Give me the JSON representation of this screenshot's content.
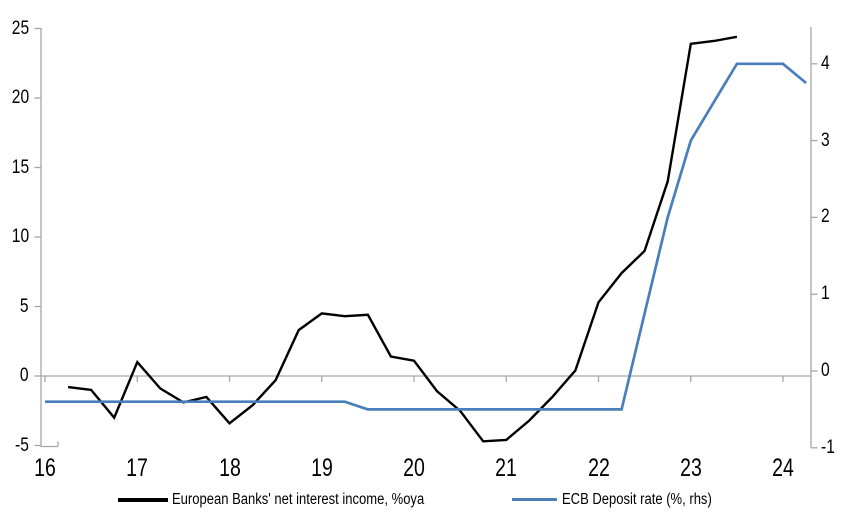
{
  "figure": {
    "background": "#ffffff",
    "axis_color": "#a6a6a6",
    "text_color": "#000000"
  },
  "chart_data": {
    "type": "line",
    "title": "",
    "xlabel": "",
    "ylabel_left": "",
    "ylabel_right": "",
    "grid": "zero-line-only",
    "x_axis": {
      "tick_values": [
        16,
        17,
        18,
        19,
        20,
        21,
        22,
        23,
        24
      ],
      "tick_labels": [
        "16",
        "17",
        "18",
        "19",
        "20",
        "21",
        "22",
        "23",
        "24"
      ],
      "range": [
        15.95,
        24.3
      ]
    },
    "left_axis": {
      "tick_values": [
        -5,
        0,
        5,
        10,
        15,
        20,
        25
      ],
      "tick_labels": [
        "-5",
        "0",
        "5",
        "10",
        "15",
        "20",
        "25"
      ],
      "range": [
        -5,
        25
      ]
    },
    "right_axis": {
      "tick_values": [
        -1,
        0,
        1,
        2,
        3,
        4
      ],
      "tick_labels": [
        "-1",
        "0",
        "1",
        "2",
        "3",
        "4"
      ],
      "range": [
        -1,
        4.5
      ]
    },
    "series": [
      {
        "name": "European Banks' net interest income, %oya",
        "axis": "left",
        "color": "#000000",
        "line_width": 2.4,
        "x": [
          16.25,
          16.5,
          16.75,
          17,
          17.25,
          17.5,
          17.75,
          18,
          18.25,
          18.5,
          18.75,
          19,
          19.25,
          19.5,
          19.75,
          20,
          20.25,
          20.5,
          20.75,
          21,
          21.25,
          21.5,
          21.75,
          22,
          22.25,
          22.5,
          22.75,
          23,
          23.25,
          23.5
        ],
        "y": [
          -0.8,
          -1.0,
          -3.0,
          1.0,
          -0.9,
          -1.9,
          -1.5,
          -3.4,
          -2.1,
          -0.3,
          3.3,
          4.5,
          4.3,
          4.4,
          1.4,
          1.1,
          -1.1,
          -2.5,
          -4.7,
          -4.6,
          -3.2,
          -1.5,
          0.4,
          5.3,
          7.4,
          9.0,
          14.0,
          23.9,
          24.1,
          24.4
        ]
      },
      {
        "name": "ECB Deposit rate (%, rhs)",
        "axis": "right",
        "color": "#4a7ebb",
        "line_width": 2.7,
        "x": [
          16,
          16.25,
          16.5,
          16.75,
          17,
          17.25,
          17.5,
          17.75,
          18,
          18.25,
          18.5,
          18.75,
          19,
          19.25,
          19.5,
          19.75,
          20,
          20.25,
          20.5,
          20.75,
          21,
          21.25,
          21.5,
          21.75,
          22,
          22.25,
          22.5,
          22.75,
          23,
          23.25,
          23.5,
          23.75,
          24,
          24.25
        ],
        "y": [
          -0.4,
          -0.4,
          -0.4,
          -0.4,
          -0.4,
          -0.4,
          -0.4,
          -0.4,
          -0.4,
          -0.4,
          -0.4,
          -0.4,
          -0.4,
          -0.4,
          -0.5,
          -0.5,
          -0.5,
          -0.5,
          -0.5,
          -0.5,
          -0.5,
          -0.5,
          -0.5,
          -0.5,
          -0.5,
          -0.5,
          0.75,
          2.0,
          3.0,
          3.5,
          4.0,
          4.0,
          4.0,
          3.75
        ]
      }
    ],
    "legend": {
      "position": "bottom",
      "entries": [
        {
          "label": "European Banks' net interest income, %oya",
          "color": "#000000"
        },
        {
          "label": "ECB Deposit rate (%, rhs)",
          "color": "#4a7ebb"
        }
      ]
    }
  }
}
